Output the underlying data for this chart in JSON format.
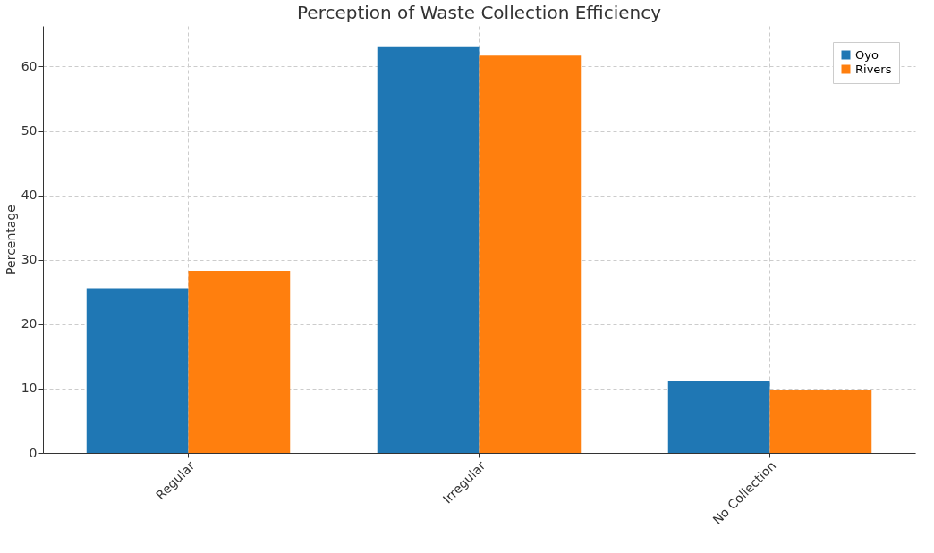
{
  "chart_data": {
    "type": "bar",
    "title": "Perception of Waste Collection Efficiency",
    "ylabel": "Percentage",
    "categories": [
      "Regular",
      "Irregular",
      "No Collection"
    ],
    "series": [
      {
        "name": "Oyo",
        "color": "#1f77b4",
        "values": [
          25.6,
          63.0,
          11.1
        ]
      },
      {
        "name": "Rivers",
        "color": "#ff7f0e",
        "values": [
          28.3,
          61.7,
          9.7
        ]
      }
    ],
    "ylim": [
      0,
      66.3
    ],
    "yticks": [
      0,
      10,
      20,
      30,
      40,
      50,
      60
    ],
    "grid": true,
    "legend": "top right"
  }
}
